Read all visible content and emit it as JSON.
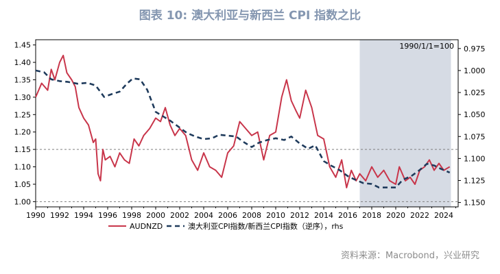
{
  "title": "图表 10: 澳大利亚与新西兰 CPI 指数之比",
  "source": "资料来源：Macrobond，兴业研究",
  "chart_data": {
    "type": "line",
    "annotation": "1990/1/1=100",
    "shaded_region": {
      "x_start": 2017.0,
      "x_end": 2024.6
    },
    "x_range": [
      1990,
      2025.2
    ],
    "x_ticks": [
      "1990",
      "1992",
      "1994",
      "1996",
      "1998",
      "2000",
      "2002",
      "2004",
      "2006",
      "2008",
      "2010",
      "2012",
      "2014",
      "2016",
      "2018",
      "2020",
      "2022",
      "2024"
    ],
    "y_left": {
      "range": [
        0.985,
        1.465
      ],
      "ticks": [
        "1.00",
        "1.05",
        "1.10",
        "1.15",
        "1.20",
        "1.25",
        "1.30",
        "1.35",
        "1.40",
        "1.45"
      ]
    },
    "y_right": {
      "range": [
        0.965,
        1.155
      ],
      "inverted": true,
      "ticks": [
        "0.975",
        "1.000",
        "1.025",
        "1.050",
        "1.075",
        "1.100",
        "1.125",
        "1.150"
      ]
    },
    "reference_lines_left": [
      1.15,
      1.0
    ],
    "series": [
      {
        "name": "AUDNZD",
        "axis": "left",
        "color": "#c8354a",
        "style": "solid",
        "x": [
          1990.0,
          1990.5,
          1991.0,
          1991.3,
          1991.6,
          1992.0,
          1992.3,
          1992.6,
          1993.0,
          1993.3,
          1993.6,
          1994.0,
          1994.4,
          1994.8,
          1995.0,
          1995.2,
          1995.4,
          1995.6,
          1995.8,
          1996.2,
          1996.6,
          1997.0,
          1997.4,
          1997.8,
          1998.2,
          1998.6,
          1999.0,
          1999.5,
          2000.0,
          2000.4,
          2000.8,
          2001.2,
          2001.6,
          2002.0,
          2002.5,
          2003.0,
          2003.5,
          2004.0,
          2004.5,
          2005.0,
          2005.5,
          2006.0,
          2006.5,
          2007.0,
          2007.5,
          2008.0,
          2008.5,
          2009.0,
          2009.5,
          2010.0,
          2010.5,
          2010.9,
          2011.3,
          2011.7,
          2012.0,
          2012.5,
          2013.0,
          2013.5,
          2014.0,
          2014.5,
          2015.0,
          2015.5,
          2015.9,
          2016.3,
          2016.7,
          2017.0,
          2017.5,
          2018.0,
          2018.5,
          2019.0,
          2019.5,
          2020.0,
          2020.3,
          2020.8,
          2021.2,
          2021.6,
          2022.0,
          2022.4,
          2022.8,
          2023.2,
          2023.6,
          2024.0,
          2024.5
        ],
        "values": [
          1.3,
          1.34,
          1.32,
          1.38,
          1.35,
          1.4,
          1.42,
          1.37,
          1.35,
          1.33,
          1.27,
          1.24,
          1.22,
          1.17,
          1.18,
          1.08,
          1.06,
          1.15,
          1.12,
          1.13,
          1.1,
          1.14,
          1.12,
          1.11,
          1.18,
          1.16,
          1.19,
          1.21,
          1.24,
          1.23,
          1.27,
          1.22,
          1.19,
          1.21,
          1.19,
          1.12,
          1.09,
          1.14,
          1.1,
          1.09,
          1.07,
          1.14,
          1.16,
          1.23,
          1.21,
          1.19,
          1.2,
          1.12,
          1.19,
          1.2,
          1.3,
          1.35,
          1.29,
          1.26,
          1.24,
          1.32,
          1.27,
          1.19,
          1.18,
          1.1,
          1.07,
          1.12,
          1.04,
          1.09,
          1.06,
          1.08,
          1.06,
          1.1,
          1.07,
          1.09,
          1.06,
          1.05,
          1.1,
          1.06,
          1.07,
          1.05,
          1.09,
          1.1,
          1.12,
          1.09,
          1.11,
          1.09,
          1.1
        ]
      },
      {
        "name": "澳大利亚CPI指数/新西兰CPI指数（逆序），rhs",
        "axis": "right",
        "color": "#1f3b5c",
        "style": "dashed",
        "x": [
          1990.0,
          1990.7,
          1991.3,
          1992.0,
          1992.7,
          1993.5,
          1994.3,
          1995.0,
          1995.7,
          1996.3,
          1997.0,
          1997.6,
          1998.1,
          1998.7,
          1999.3,
          2000.0,
          2000.6,
          2001.2,
          2001.9,
          2002.6,
          2003.3,
          2004.0,
          2004.7,
          2005.3,
          2006.0,
          2006.7,
          2007.3,
          2008.0,
          2008.6,
          2009.3,
          2010.0,
          2010.7,
          2011.3,
          2012.0,
          2012.7,
          2013.3,
          2014.0,
          2014.6,
          2015.3,
          2016.0,
          2016.6,
          2017.3,
          2018.0,
          2018.6,
          2019.3,
          2020.0,
          2020.6,
          2021.3,
          2022.0,
          2022.6,
          2023.2,
          2023.8,
          2024.5
        ],
        "values": [
          1.0,
          1.002,
          1.01,
          1.012,
          1.013,
          1.015,
          1.014,
          1.017,
          1.03,
          1.027,
          1.024,
          1.015,
          1.009,
          1.01,
          1.022,
          1.047,
          1.052,
          1.057,
          1.064,
          1.071,
          1.075,
          1.078,
          1.077,
          1.073,
          1.074,
          1.075,
          1.081,
          1.087,
          1.082,
          1.079,
          1.077,
          1.079,
          1.075,
          1.083,
          1.089,
          1.085,
          1.103,
          1.108,
          1.113,
          1.12,
          1.124,
          1.128,
          1.129,
          1.133,
          1.133,
          1.133,
          1.124,
          1.12,
          1.113,
          1.106,
          1.108,
          1.112,
          1.116
        ]
      }
    ],
    "legend_position": "bottom"
  }
}
